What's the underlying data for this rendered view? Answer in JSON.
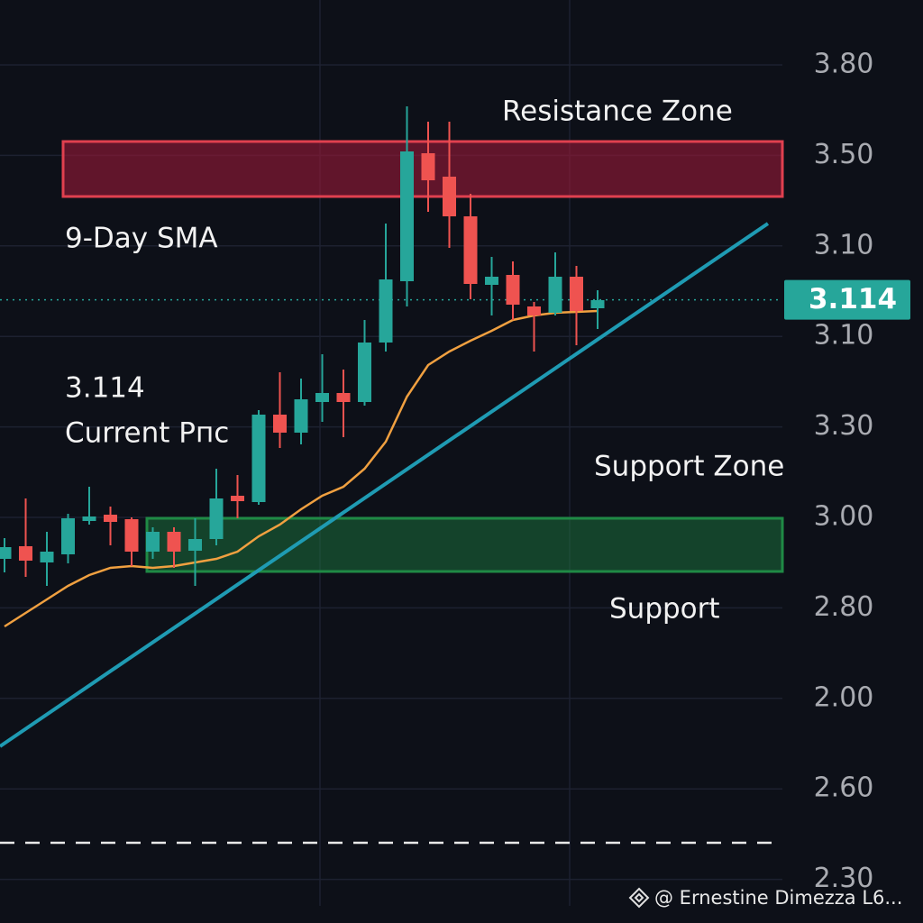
{
  "chart_data": {
    "type": "candlestick",
    "categories": [
      null,
      null,
      null,
      null,
      null,
      null,
      null,
      null,
      null,
      null,
      null,
      null,
      null,
      null,
      null,
      null,
      null,
      null,
      null,
      null,
      null,
      null,
      null,
      null,
      null,
      null,
      null,
      null,
      null
    ],
    "open": [
      2.252,
      2.294,
      2.24,
      2.267,
      2.378,
      2.399,
      2.384,
      2.276,
      2.342,
      2.279,
      2.318,
      2.462,
      2.441,
      2.732,
      2.672,
      2.774,
      2.804,
      2.774,
      2.972,
      3.176,
      3.602,
      3.524,
      3.392,
      3.164,
      3.197,
      3.092,
      3.071,
      3.191,
      3.086
    ],
    "high": [
      2.321,
      2.453,
      2.342,
      2.402,
      2.492,
      2.426,
      2.39,
      2.357,
      2.357,
      2.387,
      2.552,
      2.531,
      2.747,
      2.873,
      2.852,
      2.933,
      2.882,
      3.047,
      3.368,
      3.758,
      3.707,
      3.707,
      3.467,
      3.257,
      3.242,
      3.107,
      3.272,
      3.227,
      3.146
    ],
    "low": [
      2.207,
      2.192,
      2.162,
      2.237,
      2.366,
      2.297,
      2.228,
      2.252,
      2.222,
      2.162,
      2.297,
      2.387,
      2.432,
      2.621,
      2.633,
      2.708,
      2.657,
      2.762,
      2.942,
      3.092,
      3.407,
      3.287,
      3.116,
      3.062,
      3.047,
      2.942,
      3.062,
      2.963,
      3.017
    ],
    "close": [
      2.291,
      2.246,
      2.276,
      2.387,
      2.393,
      2.375,
      2.276,
      2.342,
      2.276,
      2.318,
      2.453,
      2.444,
      2.732,
      2.672,
      2.783,
      2.804,
      2.774,
      2.972,
      3.182,
      3.608,
      3.512,
      3.392,
      3.167,
      3.191,
      3.098,
      3.062,
      3.191,
      3.077,
      3.113
    ],
    "up_color": "#26a69a",
    "down_color": "#ef5350",
    "sma": {
      "color": "#f0a040",
      "values": [
        2.027,
        2.072,
        2.117,
        2.162,
        2.198,
        2.222,
        2.228,
        2.222,
        2.228,
        2.24,
        2.252,
        2.276,
        2.327,
        2.366,
        2.417,
        2.462,
        2.492,
        2.552,
        2.642,
        2.792,
        2.897,
        2.942,
        2.978,
        3.011,
        3.047,
        3.062,
        3.071,
        3.074,
        3.077
      ]
    },
    "trendline": {
      "color": "#1f9bb3",
      "x": [
        -0.213,
        36.04
      ],
      "values": [
        1.628,
        3.368
      ]
    },
    "resistance_zone": [
      3.458,
      3.641
    ],
    "support_zone": [
      2.21,
      2.387
    ],
    "current_price": 3.114,
    "ylim": [
      1.04,
      4.112
    ],
    "y_axis_labels": [
      "3.80",
      "3.50",
      "3.10",
      "3.10",
      "3.30",
      "3.00",
      "2.80",
      "2.00",
      "2.60",
      "2.30"
    ],
    "annotations": [
      "Resistance Zone",
      "9-Day SMA",
      "3.114",
      "Current Pпс",
      "Support Zone",
      "Support"
    ],
    "watermark": "@ Ernestine Dimezza L6..."
  }
}
